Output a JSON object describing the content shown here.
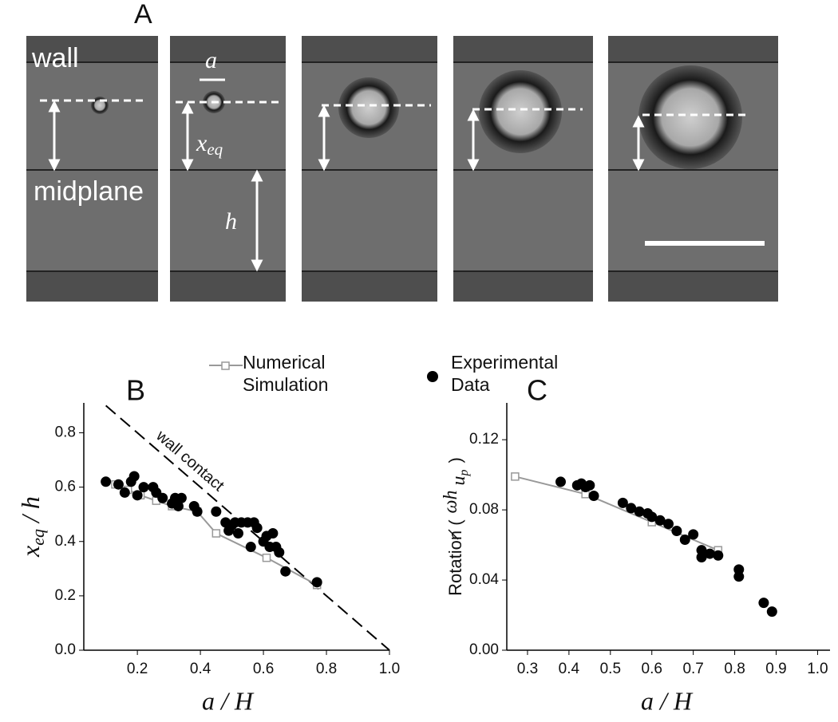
{
  "panel_a": {
    "label": "A",
    "wall": "wall",
    "particle_size": "a",
    "eq_position": {
      "base": "x",
      "sub": "eq"
    },
    "midplane": "midplane",
    "half_height": "h"
  },
  "chart_data": [
    {
      "type": "scatter",
      "label": "B",
      "xlabel": "a / H",
      "ylabel": {
        "base": "x",
        "sub": "eq",
        "rest": " / h"
      },
      "xlim": [
        0.03,
        1.0
      ],
      "xticks": [
        0.2,
        0.4,
        0.6,
        0.8,
        {
          "value": 1.0,
          "label": "1.0"
        }
      ],
      "ylim": [
        0,
        0.91
      ],
      "yticks": [
        {
          "value": 0.0,
          "label": "0.0"
        },
        0.2,
        0.4,
        0.6,
        0.8
      ],
      "annotation": {
        "label": "wall contact",
        "x": [
          0.1,
          1.0
        ],
        "y": [
          0.9,
          0
        ]
      },
      "series": [
        {
          "name": "Numerical Simulation",
          "color": "#999999",
          "marker": "square",
          "line": true,
          "x": [
            0.13,
            0.17,
            0.21,
            0.26,
            0.31,
            0.39,
            0.45,
            0.61,
            0.77
          ],
          "values": [
            0.61,
            0.59,
            0.57,
            0.55,
            0.53,
            0.51,
            0.43,
            0.34,
            0.24
          ]
        },
        {
          "name": "Experimental Data",
          "color": "#000000",
          "marker": "circle",
          "line": false,
          "x": [
            0.1,
            0.14,
            0.16,
            0.18,
            0.19,
            0.2,
            0.22,
            0.25,
            0.26,
            0.28,
            0.31,
            0.32,
            0.33,
            0.34,
            0.38,
            0.39,
            0.45,
            0.48,
            0.49,
            0.5,
            0.51,
            0.52,
            0.53,
            0.55,
            0.56,
            0.57,
            0.58,
            0.6,
            0.61,
            0.62,
            0.63,
            0.64,
            0.65,
            0.67,
            0.77
          ],
          "values": [
            0.62,
            0.61,
            0.58,
            0.62,
            0.64,
            0.57,
            0.6,
            0.6,
            0.58,
            0.56,
            0.54,
            0.56,
            0.53,
            0.56,
            0.53,
            0.51,
            0.51,
            0.47,
            0.44,
            0.46,
            0.47,
            0.43,
            0.47,
            0.47,
            0.38,
            0.47,
            0.45,
            0.4,
            0.42,
            0.38,
            0.43,
            0.38,
            0.36,
            0.29,
            0.25
          ]
        }
      ]
    },
    {
      "type": "scatter",
      "label": "C",
      "xlabel": "a / H",
      "ylabel": {
        "prefix": "Rotation (",
        "numerator": "ωh",
        "denominator": "u",
        "denominator_sub": "p",
        "suffix": ")"
      },
      "xlim": [
        0.25,
        1.03
      ],
      "xticks": [
        0.3,
        0.4,
        0.5,
        0.6,
        0.7,
        0.8,
        0.9,
        {
          "value": 1.0,
          "label": "1.0"
        }
      ],
      "ylim": [
        0,
        0.141
      ],
      "yticks": [
        {
          "value": 0,
          "label": "0.00"
        },
        0.04,
        0.08,
        0.12
      ],
      "series": [
        {
          "color": "#999999",
          "marker": "square",
          "line": true,
          "x": [
            0.27,
            0.44,
            0.6,
            0.76
          ],
          "values": [
            0.099,
            0.089,
            0.073,
            0.057
          ]
        },
        {
          "color": "#000000",
          "marker": "circle",
          "line": false,
          "x": [
            0.38,
            0.42,
            0.43,
            0.44,
            0.45,
            0.46,
            0.53,
            0.55,
            0.57,
            0.59,
            0.6,
            0.62,
            0.64,
            0.66,
            0.68,
            0.7,
            0.72,
            0.72,
            0.74,
            0.76,
            0.81,
            0.81,
            0.87,
            0.89
          ],
          "values": [
            0.096,
            0.094,
            0.095,
            0.093,
            0.094,
            0.088,
            0.084,
            0.081,
            0.079,
            0.078,
            0.076,
            0.074,
            0.072,
            0.068,
            0.063,
            0.066,
            0.057,
            0.053,
            0.055,
            0.054,
            0.046,
            0.042,
            0.027,
            0.022
          ]
        }
      ]
    }
  ]
}
